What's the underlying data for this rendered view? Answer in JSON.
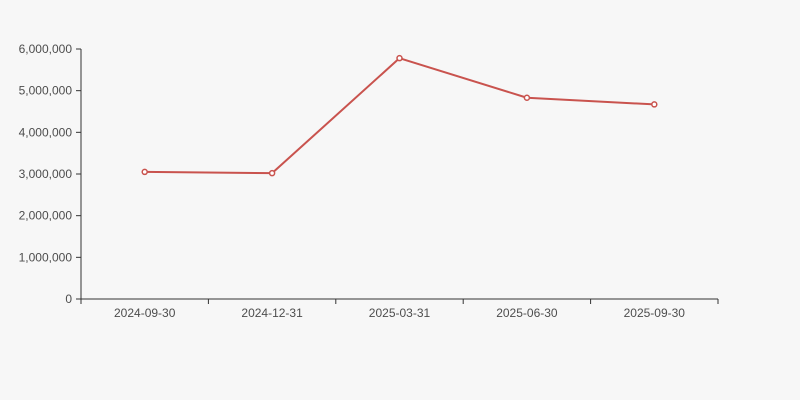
{
  "chart_data": {
    "type": "line",
    "title": "",
    "xlabel": "",
    "ylabel": "",
    "categories": [
      "2024-09-30",
      "2024-12-31",
      "2025-03-31",
      "2025-06-30",
      "2025-09-30"
    ],
    "series": [
      {
        "name": "series-1",
        "values": [
          3050000,
          3020000,
          5780000,
          4830000,
          4670000
        ]
      }
    ],
    "ylim": [
      0,
      6000000
    ],
    "yticks": [
      0,
      1000000,
      2000000,
      3000000,
      4000000,
      5000000,
      6000000
    ],
    "grid": false,
    "legend": false,
    "marker": "open-circle",
    "colors": {
      "line": "#c9534e",
      "marker_fill": "#ffffff",
      "background": "#f7f7f7",
      "axis": "#333333",
      "label": "#4d4d4d"
    }
  }
}
